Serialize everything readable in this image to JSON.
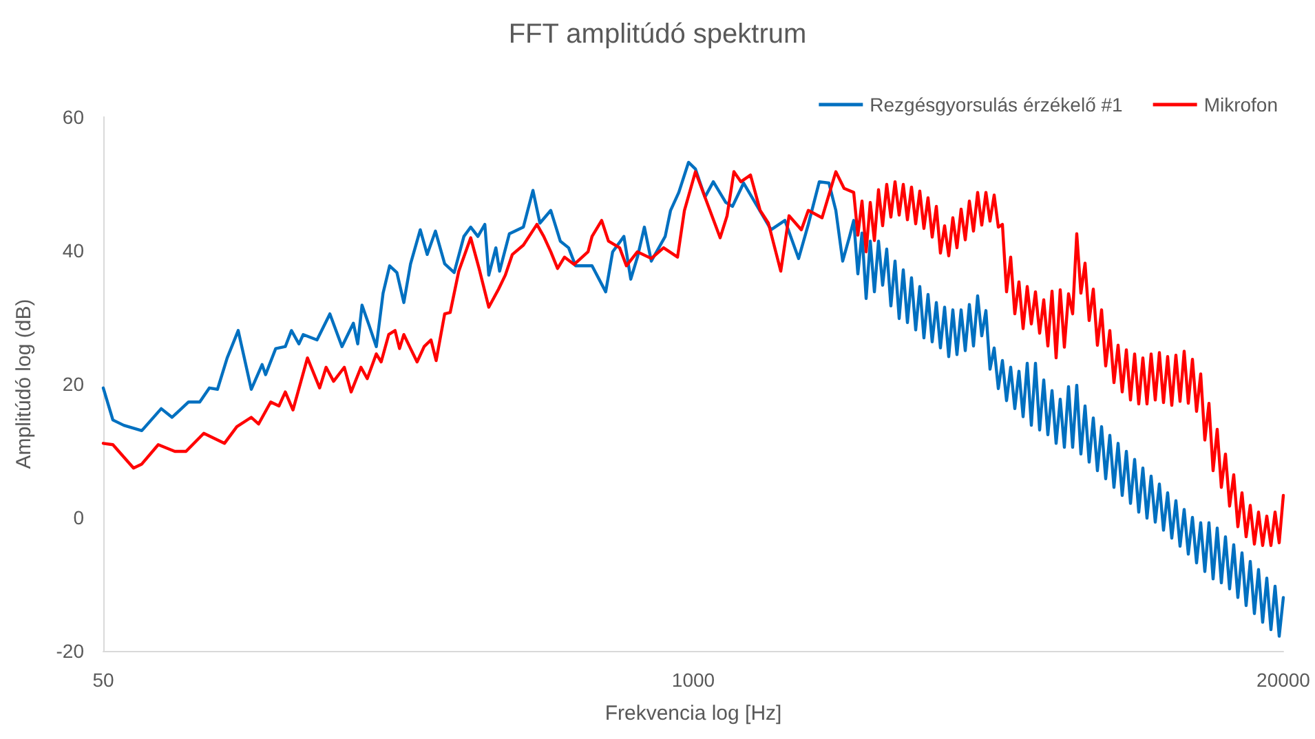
{
  "chart_data": {
    "type": "line",
    "title": "FFT amplitúdó spektrum",
    "xlabel": "Frekvencia log [Hz]",
    "ylabel": "Amplitúdó log (dB)",
    "log": "x",
    "legend": "top right",
    "xlim": [
      50,
      20000
    ],
    "xticks": [
      50,
      1000,
      20000
    ],
    "ylim": [
      -20,
      60
    ],
    "yticks": [
      -20,
      0,
      20,
      40,
      60
    ],
    "series": [
      {
        "name": "Rezgésgyorsulás érzékelő #1",
        "color": "#0070c0",
        "x": [
          50,
          52.5,
          55.5,
          60.8,
          67.1,
          70.9,
          77.1,
          81.6,
          85.7,
          89.3,
          93.8,
          99.2,
          106,
          112,
          114,
          120,
          126,
          130,
          135,
          138,
          148,
          158,
          168,
          178,
          182,
          186,
          193,
          200,
          207,
          214,
          222,
          230,
          238,
          250,
          259,
          270,
          283,
          297,
          312,
          323,
          335,
          347,
          354,
          367,
          374,
          393,
          422,
          443,
          459,
          485,
          509,
          531,
          550,
          598,
          641,
          664,
          703,
          728,
          753,
          780,
          808,
          867,
          891,
          929,
          976,
          1011,
          1061,
          1107,
          1179,
          1220,
          1291,
          1384,
          1484,
          1592,
          1707,
          1793,
          1896,
          1991,
          2062,
          2135,
          2211,
          2258,
          2306,
          2355,
          2405,
          2456,
          2508,
          2561,
          2615,
          2670,
          2727,
          2785,
          2844,
          2904,
          2966,
          3028,
          3093,
          3158,
          3225,
          3293,
          3363,
          3435,
          3507,
          3582,
          3658,
          3735,
          3814,
          3895,
          3978,
          4062,
          4148,
          4236,
          4326,
          4418,
          4511,
          4607,
          4705,
          4804,
          4906,
          5010,
          5116,
          5225,
          5336,
          5449,
          5564,
          5682,
          5803,
          5926,
          6051,
          6180,
          6310,
          6443,
          6580,
          6720,
          6862,
          7007,
          7156,
          7308,
          7462,
          7621,
          7782,
          7948,
          8116,
          8288,
          8464,
          8643,
          8826,
          9014,
          9205,
          9400,
          9599,
          9802,
          10009,
          10221,
          10438,
          10659,
          10885,
          11116,
          11352,
          11592,
          11838,
          12089,
          12345,
          12607,
          12874,
          13147,
          13426,
          13710,
          14001,
          14297,
          14600,
          14909,
          15225,
          15548,
          15877,
          16214,
          16557,
          16908,
          17267,
          17633,
          18007,
          18390,
          18780,
          19178,
          19585,
          20000
        ],
        "values": [
          19.4,
          14.6,
          13.8,
          13.0,
          16.3,
          15.0,
          17.3,
          17.3,
          19.4,
          19.2,
          23.9,
          28.0,
          19.2,
          22.9,
          21.4,
          25.3,
          25.6,
          28.0,
          26.0,
          27.4,
          26.6,
          30.5,
          25.6,
          29.1,
          26.0,
          31.8,
          28.7,
          25.6,
          33.6,
          37.7,
          36.7,
          32.2,
          38.0,
          43.1,
          39.4,
          42.9,
          38.0,
          36.7,
          42.1,
          43.5,
          42.1,
          43.9,
          36.3,
          40.4,
          36.9,
          42.5,
          43.5,
          49.0,
          44.1,
          46.0,
          41.4,
          40.4,
          37.7,
          37.7,
          33.8,
          39.8,
          42.1,
          35.7,
          39.0,
          43.5,
          38.4,
          42.1,
          46.0,
          48.7,
          53.2,
          52.2,
          48.0,
          50.3,
          47.2,
          46.6,
          50.1,
          46.6,
          43.1,
          44.5,
          38.8,
          43.9,
          50.3,
          50.1,
          46.0,
          38.4,
          42.1,
          44.5,
          36.5,
          42.6,
          32.8,
          41.4,
          33.8,
          41.4,
          34.8,
          40.2,
          31.7,
          38.4,
          29.8,
          37.1,
          29.2,
          35.9,
          28.1,
          34.6,
          26.9,
          33.4,
          26.3,
          32.2,
          25.4,
          31.5,
          24.1,
          31.1,
          24.4,
          31.1,
          25.0,
          31.9,
          25.7,
          33.2,
          27.2,
          31.0,
          22.2,
          25.4,
          19.3,
          23.5,
          17.5,
          22.5,
          16.3,
          21.9,
          15.1,
          23.1,
          13.8,
          23.1,
          13.1,
          20.6,
          12.4,
          19.0,
          11.1,
          17.7,
          10.5,
          19.6,
          10.5,
          19.8,
          9.5,
          16.7,
          8.3,
          14.9,
          7.0,
          13.6,
          5.8,
          12.3,
          4.5,
          11.1,
          3.3,
          9.9,
          2.1,
          8.7,
          0.8,
          7.4,
          -0.1,
          6.2,
          -0.7,
          5.0,
          -1.9,
          3.7,
          -3.1,
          2.5,
          -4.3,
          1.2,
          -5.5,
          0.0,
          -6.8,
          -0.8,
          -8.1,
          -0.8,
          -9.2,
          -1.6,
          -9.8,
          -2.9,
          -10.7,
          -4.1,
          -12.0,
          -5.3,
          -13.2,
          -6.6,
          -14.4,
          -7.8,
          -15.7,
          -9.1,
          -16.8,
          -10.3,
          -17.8,
          -12.0
        ]
      },
      {
        "name": "Mikrofon",
        "color": "#ff0000",
        "x": [
          50,
          52.5,
          58.3,
          60.8,
          66.1,
          71.9,
          76.1,
          83.3,
          92.5,
          98.5,
          106,
          110,
          117,
          122,
          126,
          131,
          141,
          150,
          155,
          161,
          170,
          176,
          185,
          191,
          200,
          205,
          213,
          220,
          225,
          230,
          238,
          246,
          255,
          264,
          271,
          283,
          291,
          304,
          323,
          337,
          354,
          372,
          385,
          399,
          422,
          452,
          468,
          485,
          502,
          520,
          546,
          586,
          598,
          628,
          650,
          688,
          712,
          753,
          808,
          860,
          923,
          956,
          1011,
          1061,
          1146,
          1187,
          1229,
          1273,
          1337,
          1404,
          1464,
          1559,
          1626,
          1731,
          1793,
          1923,
          2062,
          2150,
          2258,
          2306,
          2355,
          2405,
          2456,
          2508,
          2561,
          2615,
          2670,
          2727,
          2785,
          2844,
          2904,
          2966,
          3028,
          3093,
          3158,
          3225,
          3293,
          3363,
          3435,
          3507,
          3582,
          3658,
          3735,
          3814,
          3895,
          3978,
          4062,
          4148,
          4236,
          4326,
          4418,
          4511,
          4607,
          4705,
          4804,
          4906,
          5010,
          5116,
          5225,
          5336,
          5449,
          5564,
          5682,
          5803,
          5926,
          6051,
          6180,
          6310,
          6443,
          6580,
          6720,
          6862,
          7007,
          7156,
          7308,
          7462,
          7621,
          7782,
          7948,
          8116,
          8288,
          8464,
          8643,
          8826,
          9014,
          9205,
          9400,
          9599,
          9802,
          10009,
          10221,
          10438,
          10659,
          10885,
          11116,
          11352,
          11592,
          11838,
          12089,
          12345,
          12607,
          12874,
          13147,
          13426,
          13710,
          14001,
          14297,
          14600,
          14909,
          15225,
          15548,
          15877,
          16214,
          16557,
          16908,
          17267,
          17633,
          18007,
          18390,
          18780,
          19178,
          19585,
          20000
        ],
        "values": [
          11.1,
          10.9,
          7.4,
          8.0,
          10.9,
          9.9,
          9.9,
          12.6,
          11.1,
          13.6,
          15.0,
          14.0,
          17.3,
          16.7,
          18.8,
          16.1,
          23.9,
          19.4,
          22.5,
          20.4,
          22.5,
          18.8,
          22.5,
          20.8,
          24.5,
          23.3,
          27.4,
          28.0,
          25.3,
          27.4,
          25.3,
          23.3,
          25.6,
          26.6,
          23.5,
          30.5,
          30.7,
          36.9,
          41.9,
          37.3,
          31.5,
          34.2,
          36.3,
          39.4,
          40.8,
          43.9,
          42.1,
          39.8,
          37.3,
          39.0,
          37.9,
          39.8,
          42.1,
          44.5,
          41.4,
          40.4,
          37.7,
          39.8,
          38.8,
          40.4,
          39.0,
          46.0,
          51.8,
          48.0,
          41.9,
          45.2,
          51.8,
          50.3,
          51.3,
          46.0,
          44.1,
          36.9,
          45.2,
          43.1,
          46.0,
          44.9,
          51.8,
          49.3,
          48.7,
          42.3,
          47.4,
          39.8,
          47.2,
          41.5,
          49.1,
          43.7,
          49.9,
          45.0,
          50.3,
          45.3,
          49.9,
          44.6,
          49.5,
          44.0,
          48.9,
          43.3,
          47.9,
          42.0,
          46.6,
          39.6,
          43.7,
          39.2,
          44.9,
          40.4,
          46.2,
          41.6,
          47.4,
          42.9,
          48.7,
          43.8,
          48.7,
          44.4,
          48.3,
          43.5,
          43.9,
          33.8,
          39.0,
          30.5,
          35.3,
          28.3,
          34.6,
          29.0,
          33.8,
          27.6,
          32.6,
          25.7,
          33.9,
          23.9,
          34.1,
          25.5,
          33.5,
          30.5,
          42.5,
          33.6,
          38.1,
          29.5,
          34.2,
          25.8,
          31.1,
          22.7,
          28.0,
          20.2,
          25.8,
          18.8,
          25.1,
          17.6,
          24.5,
          17.0,
          23.9,
          17.0,
          24.5,
          17.6,
          24.7,
          17.2,
          24.1,
          16.8,
          24.3,
          17.4,
          24.9,
          17.1,
          23.7,
          15.9,
          21.5,
          11.6,
          17.1,
          7.0,
          13.2,
          4.5,
          9.5,
          1.7,
          6.4,
          -1.4,
          3.7,
          -2.9,
          1.8,
          -4.0,
          0.8,
          -4.2,
          0.2,
          -4.2,
          0.8,
          -3.8,
          3.3
        ]
      }
    ]
  }
}
